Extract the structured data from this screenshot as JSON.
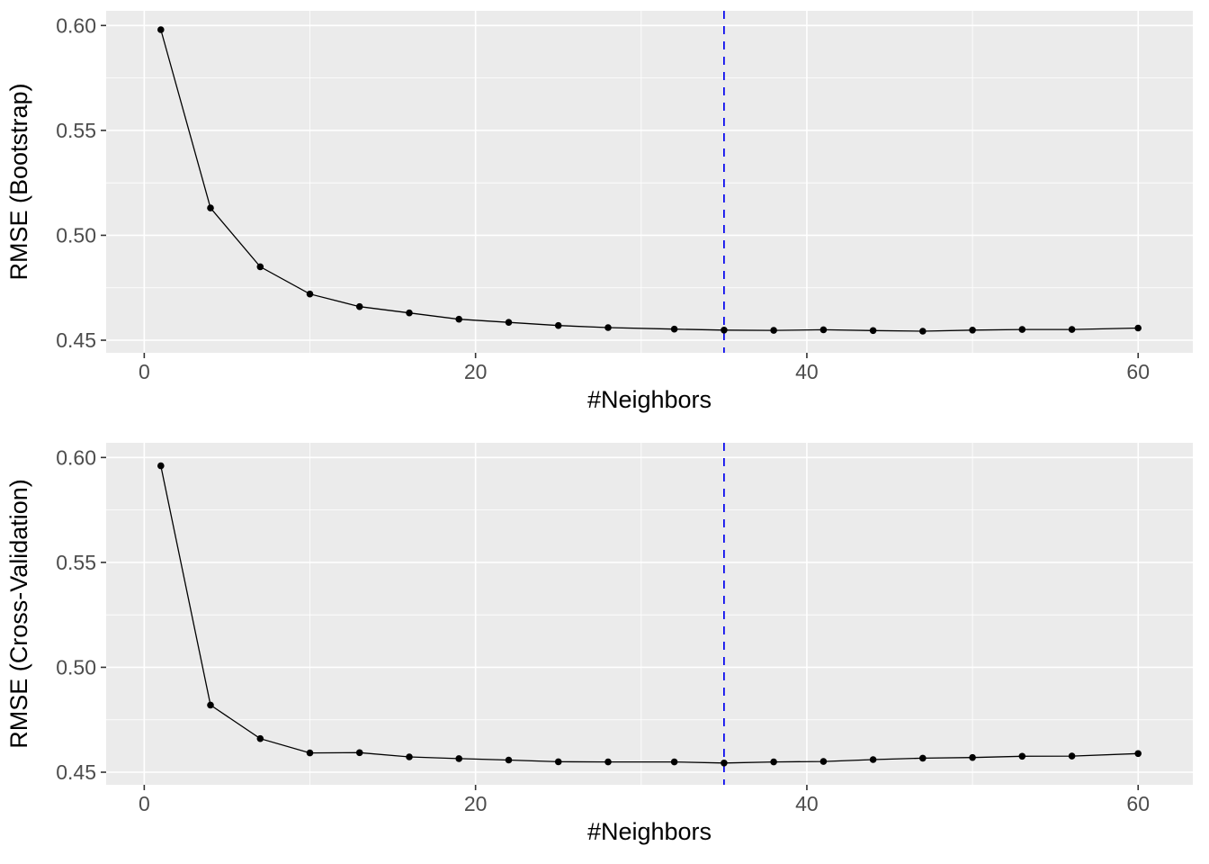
{
  "page": {
    "background": "#FFFFFF",
    "description": "Two stacked ggplot-style line charts of kNN tuning results"
  },
  "chart_data": [
    {
      "type": "line",
      "title": "",
      "xlabel": "#Neighbors",
      "ylabel": "RMSE (Bootstrap)",
      "x": [
        1,
        4,
        7,
        10,
        13,
        16,
        19,
        22,
        25,
        28,
        32,
        35,
        38,
        41,
        44,
        47,
        50,
        53,
        56,
        60
      ],
      "series": [
        {
          "name": "RMSE (Bootstrap)",
          "values": [
            0.598,
            0.513,
            0.485,
            0.472,
            0.466,
            0.463,
            0.46,
            0.4585,
            0.457,
            0.456,
            0.4553,
            0.4548,
            0.4547,
            0.455,
            0.4546,
            0.4543,
            0.4548,
            0.4551,
            0.4551,
            0.4558
          ]
        }
      ],
      "xlim": [
        -2.3,
        63.3
      ],
      "ylim": [
        0.444,
        0.607
      ],
      "x_ticks": [
        0,
        20,
        40,
        60
      ],
      "x_tick_labels": [
        "0",
        "20",
        "40",
        "60"
      ],
      "x_minor": [
        10,
        30,
        50
      ],
      "y_ticks": [
        0.45,
        0.5,
        0.55,
        0.6
      ],
      "y_tick_labels": [
        "0.45",
        "0.50",
        "0.55",
        "0.60"
      ],
      "y_minor": [
        0.475,
        0.525,
        0.575
      ],
      "vline": {
        "x": 35,
        "color": "#0000EE",
        "style": "dashed"
      },
      "grid": true,
      "legend": "none",
      "style": {
        "panel_bg": "#EBEBEB",
        "grid_color": "#FFFFFF",
        "line_color": "#000000",
        "point_color": "#000000",
        "tick_mark_color": "#333333",
        "tick_label_color": "#4D4D4D",
        "title_color": "#000000"
      }
    },
    {
      "type": "line",
      "title": "",
      "xlabel": "#Neighbors",
      "ylabel": "RMSE (Cross-Validation)",
      "x": [
        1,
        4,
        7,
        10,
        13,
        16,
        19,
        22,
        25,
        28,
        32,
        35,
        38,
        41,
        44,
        47,
        50,
        53,
        56,
        60
      ],
      "series": [
        {
          "name": "RMSE (Cross-Validation)",
          "values": [
            0.596,
            0.482,
            0.466,
            0.4592,
            0.4593,
            0.4573,
            0.4565,
            0.4558,
            0.455,
            0.4549,
            0.4549,
            0.4544,
            0.4549,
            0.4551,
            0.456,
            0.4567,
            0.457,
            0.4576,
            0.4577,
            0.4589
          ]
        }
      ],
      "xlim": [
        -2.3,
        63.3
      ],
      "ylim": [
        0.444,
        0.607
      ],
      "x_ticks": [
        0,
        20,
        40,
        60
      ],
      "x_tick_labels": [
        "0",
        "20",
        "40",
        "60"
      ],
      "x_minor": [
        10,
        30,
        50
      ],
      "y_ticks": [
        0.45,
        0.5,
        0.55,
        0.6
      ],
      "y_tick_labels": [
        "0.45",
        "0.50",
        "0.55",
        "0.60"
      ],
      "y_minor": [
        0.475,
        0.525,
        0.575
      ],
      "vline": {
        "x": 35,
        "color": "#0000EE",
        "style": "dashed"
      },
      "grid": true,
      "legend": "none",
      "style": {
        "panel_bg": "#EBEBEB",
        "grid_color": "#FFFFFF",
        "line_color": "#000000",
        "point_color": "#000000",
        "tick_mark_color": "#333333",
        "tick_label_color": "#4D4D4D",
        "title_color": "#000000"
      }
    }
  ]
}
